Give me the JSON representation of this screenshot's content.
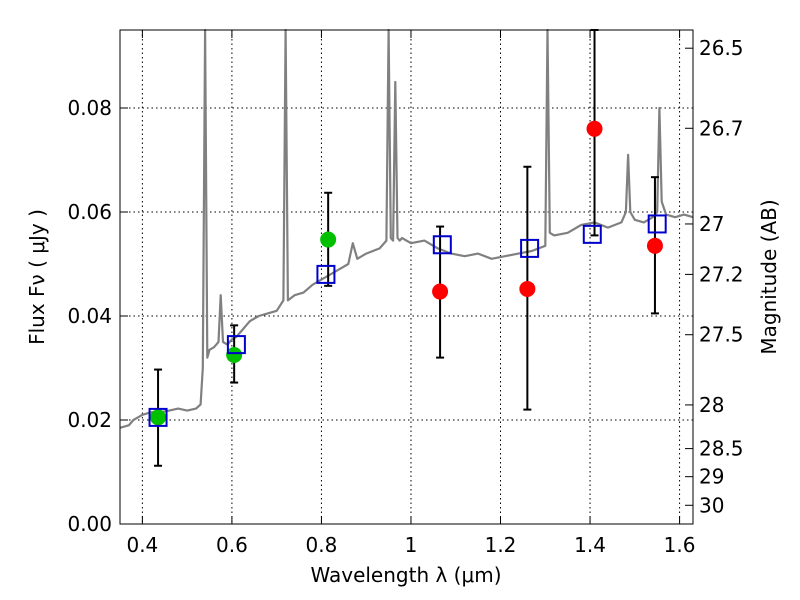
{
  "chart_data": {
    "type": "scatter",
    "xlabel": "Wavelength  λ (μm)",
    "ylabel": "Flux  Fν  ( μJy )",
    "y2label": "Magnitude (AB)",
    "xlim": [
      0.35,
      1.63
    ],
    "ylim": [
      0.0,
      0.095
    ],
    "grid": true,
    "x_ticks": [
      0.4,
      0.6,
      0.8,
      1.0,
      1.2,
      1.4,
      1.6
    ],
    "x_tick_labels": [
      "0.4",
      "0.6",
      "0.8",
      "1",
      "1.2",
      "1.4",
      "1.6"
    ],
    "y_ticks": [
      0.0,
      0.02,
      0.04,
      0.06,
      0.08
    ],
    "y_tick_labels": [
      "0.00",
      "0.02",
      "0.04",
      "0.06",
      "0.08"
    ],
    "magnitude_ticks": [
      {
        "label": "26.5",
        "flux": 0.0915
      },
      {
        "label": "26.7",
        "flux": 0.0761
      },
      {
        "label": "27",
        "flux": 0.0577
      },
      {
        "label": "27.2",
        "flux": 0.048
      },
      {
        "label": "27.5",
        "flux": 0.0364
      },
      {
        "label": "28",
        "flux": 0.0229
      },
      {
        "label": "28.5",
        "flux": 0.0145
      },
      {
        "label": "29",
        "flux": 0.0091
      },
      {
        "label": "30",
        "flux": 0.0036
      }
    ],
    "model_spectrum": {
      "color": "#808080",
      "x": [
        0.35,
        0.37,
        0.38,
        0.39,
        0.4,
        0.42,
        0.44,
        0.46,
        0.48,
        0.5,
        0.52,
        0.53,
        0.535,
        0.54,
        0.545,
        0.55,
        0.56,
        0.57,
        0.575,
        0.58,
        0.59,
        0.6,
        0.61,
        0.62,
        0.63,
        0.64,
        0.66,
        0.68,
        0.7,
        0.715,
        0.72,
        0.725,
        0.74,
        0.76,
        0.78,
        0.8,
        0.82,
        0.84,
        0.86,
        0.87,
        0.88,
        0.9,
        0.93,
        0.945,
        0.95,
        0.955,
        0.96,
        0.965,
        0.97,
        0.975,
        0.98,
        1.0,
        1.03,
        1.06,
        1.09,
        1.12,
        1.15,
        1.18,
        1.21,
        1.24,
        1.27,
        1.3,
        1.305,
        1.31,
        1.32,
        1.35,
        1.38,
        1.41,
        1.44,
        1.47,
        1.48,
        1.485,
        1.49,
        1.5,
        1.52,
        1.54,
        1.55,
        1.555,
        1.56,
        1.57,
        1.59,
        1.61,
        1.63
      ],
      "y": [
        0.0185,
        0.019,
        0.02,
        0.0205,
        0.021,
        0.0215,
        0.0215,
        0.0218,
        0.0222,
        0.0218,
        0.0222,
        0.023,
        0.03,
        0.095,
        0.032,
        0.0335,
        0.034,
        0.035,
        0.044,
        0.035,
        0.0345,
        0.0355,
        0.036,
        0.037,
        0.038,
        0.039,
        0.04,
        0.0405,
        0.041,
        0.043,
        0.095,
        0.043,
        0.044,
        0.0445,
        0.046,
        0.047,
        0.048,
        0.049,
        0.05,
        0.054,
        0.051,
        0.052,
        0.053,
        0.0545,
        0.095,
        0.055,
        0.0545,
        0.085,
        0.055,
        0.0545,
        0.055,
        0.054,
        0.0545,
        0.053,
        0.052,
        0.0515,
        0.052,
        0.051,
        0.0515,
        0.052,
        0.0525,
        0.0535,
        0.095,
        0.056,
        0.0555,
        0.056,
        0.0575,
        0.058,
        0.057,
        0.058,
        0.06,
        0.071,
        0.06,
        0.0585,
        0.058,
        0.059,
        0.06,
        0.08,
        0.062,
        0.0595,
        0.059,
        0.0595,
        0.059
      ]
    },
    "series": [
      {
        "marker": "circle",
        "color": "#00c000",
        "x": [
          0.435,
          0.605,
          0.815
        ],
        "y": [
          0.0205,
          0.0325,
          0.0547
        ],
        "yerr_low": [
          0.0112,
          0.0272,
          0.0458
        ],
        "yerr_high": [
          0.0297,
          0.0382,
          0.0637
        ]
      },
      {
        "marker": "circle",
        "color": "#ff0000",
        "x": [
          1.065,
          1.26,
          1.41,
          1.545
        ],
        "y": [
          0.0447,
          0.0452,
          0.076,
          0.0535
        ],
        "yerr_low": [
          0.032,
          0.022,
          0.0555,
          0.0405
        ],
        "yerr_high": [
          0.0572,
          0.0687,
          0.095,
          0.0667
        ]
      },
      {
        "marker": "square",
        "color": "#0000cc",
        "x": [
          0.435,
          0.61,
          0.81,
          1.07,
          1.265,
          1.405,
          1.55
        ],
        "y": [
          0.0205,
          0.0345,
          0.048,
          0.0537,
          0.053,
          0.0557,
          0.0577
        ]
      }
    ]
  }
}
